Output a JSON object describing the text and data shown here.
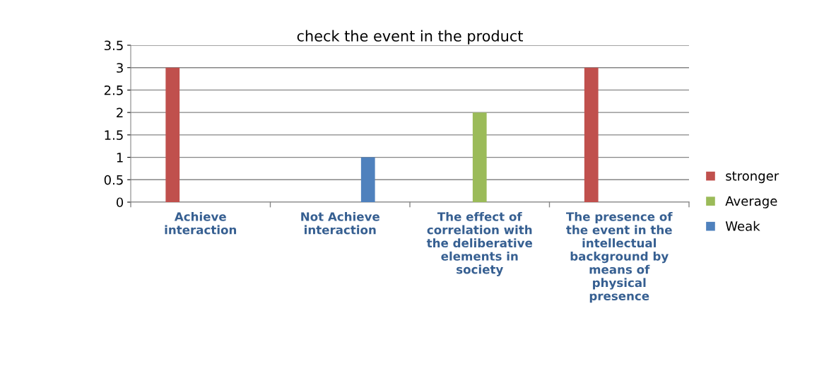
{
  "chart_data": {
    "type": "bar",
    "title": "check the event in the product",
    "categories": [
      "Achieve interaction",
      "Not Achieve interaction",
      "The effect of correlation with the deliberative elements in society",
      "The presence of the event in the intellectual background by means of physical presence"
    ],
    "series": [
      {
        "name": "stronger",
        "color": "#c0504d",
        "values": [
          3,
          null,
          null,
          3
        ]
      },
      {
        "name": "Average",
        "color": "#9bbb59",
        "values": [
          null,
          null,
          2,
          null
        ]
      },
      {
        "name": "Weak",
        "color": "#4f81bd",
        "values": [
          null,
          1,
          null,
          null
        ]
      }
    ],
    "ylim": [
      0,
      3.5
    ],
    "yticks": [
      0,
      0.5,
      1,
      1.5,
      2,
      2.5,
      3,
      3.5
    ],
    "grid": "y",
    "legend": "right"
  }
}
